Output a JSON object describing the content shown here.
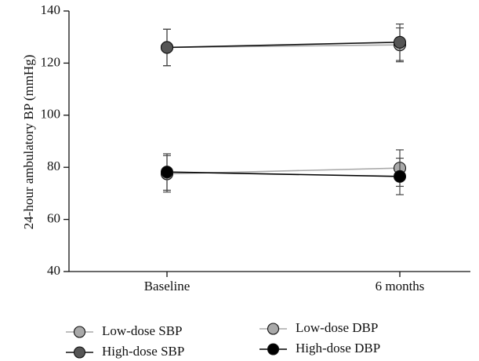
{
  "chart_data": {
    "type": "line",
    "title": "",
    "xlabel": "",
    "ylabel": "24-hour ambulatory BP (mmHg)",
    "categories": [
      "Baseline",
      "6 months"
    ],
    "ylim": [
      40,
      140
    ],
    "yticks": [
      40,
      60,
      80,
      100,
      120,
      140
    ],
    "grid": false,
    "error_bars": true,
    "legend_position": "bottom",
    "series": [
      {
        "name": "Low-dose SBP",
        "values": [
          126,
          127
        ],
        "errors": [
          7,
          6.5
        ],
        "color": "#a9a9a9",
        "line_color": "#a9a9a9"
      },
      {
        "name": "High-dose SBP",
        "values": [
          126,
          128
        ],
        "errors": [
          7,
          7
        ],
        "color": "#555555",
        "line_color": "#111111"
      },
      {
        "name": "Low-dose DBP",
        "values": [
          77.5,
          79.7
        ],
        "errors": [
          7,
          7
        ],
        "color": "#a9a9a9",
        "line_color": "#a9a9a9"
      },
      {
        "name": "High-dose DBP",
        "values": [
          78.2,
          76.5
        ],
        "errors": [
          7,
          7
        ],
        "color": "#000000",
        "line_color": "#000000"
      }
    ]
  }
}
